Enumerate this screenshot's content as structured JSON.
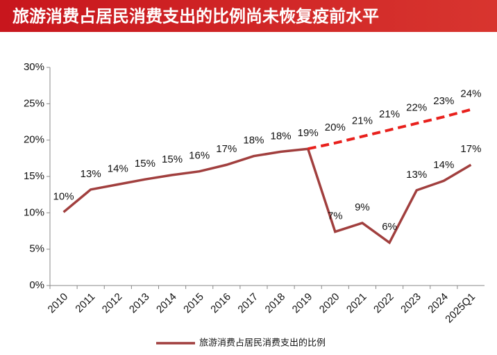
{
  "chart_data": {
    "type": "line",
    "title": "旅游消费占居民消费支出的比例尚未恢复疫前水平",
    "categories": [
      "2010",
      "2011",
      "2012",
      "2013",
      "2014",
      "2015",
      "2016",
      "2017",
      "2018",
      "2019",
      "2020",
      "2021",
      "2022",
      "2023",
      "2024",
      "2025Q1"
    ],
    "series": [
      {
        "name": "旅游消费占居民消费支出的比例",
        "color": "#a13f3e",
        "dashed": false,
        "values": [
          10.1,
          13.2,
          13.9,
          14.6,
          15.2,
          15.7,
          16.6,
          17.8,
          18.4,
          18.8,
          7.4,
          8.6,
          5.9,
          13.1,
          14.4,
          16.6
        ],
        "value_labels": [
          "10%",
          "13%",
          "14%",
          "15%",
          "15%",
          "16%",
          "17%",
          "18%",
          "18%",
          "19%",
          "7%",
          "9%",
          "6%",
          "13%",
          "14%",
          "17%"
        ]
      },
      {
        "color": "#e8201c",
        "dashed": true,
        "values": [
          null,
          null,
          null,
          null,
          null,
          null,
          null,
          null,
          null,
          18.8,
          19.6,
          20.5,
          21.4,
          22.3,
          23.2,
          24.2
        ],
        "value_labels": [
          null,
          null,
          null,
          null,
          null,
          null,
          null,
          null,
          null,
          null,
          "20%",
          "21%",
          "21%",
          "22%",
          "23%",
          "24%"
        ]
      }
    ],
    "ylim": [
      0,
      30
    ],
    "yticks": [
      {
        "value": 0,
        "label": "0%"
      },
      {
        "value": 5,
        "label": "5%"
      },
      {
        "value": 10,
        "label": "10%"
      },
      {
        "value": 15,
        "label": "15%"
      },
      {
        "value": 20,
        "label": "20%"
      },
      {
        "value": 25,
        "label": "25%"
      },
      {
        "value": 30,
        "label": "30%"
      }
    ],
    "legend": "bottom"
  }
}
